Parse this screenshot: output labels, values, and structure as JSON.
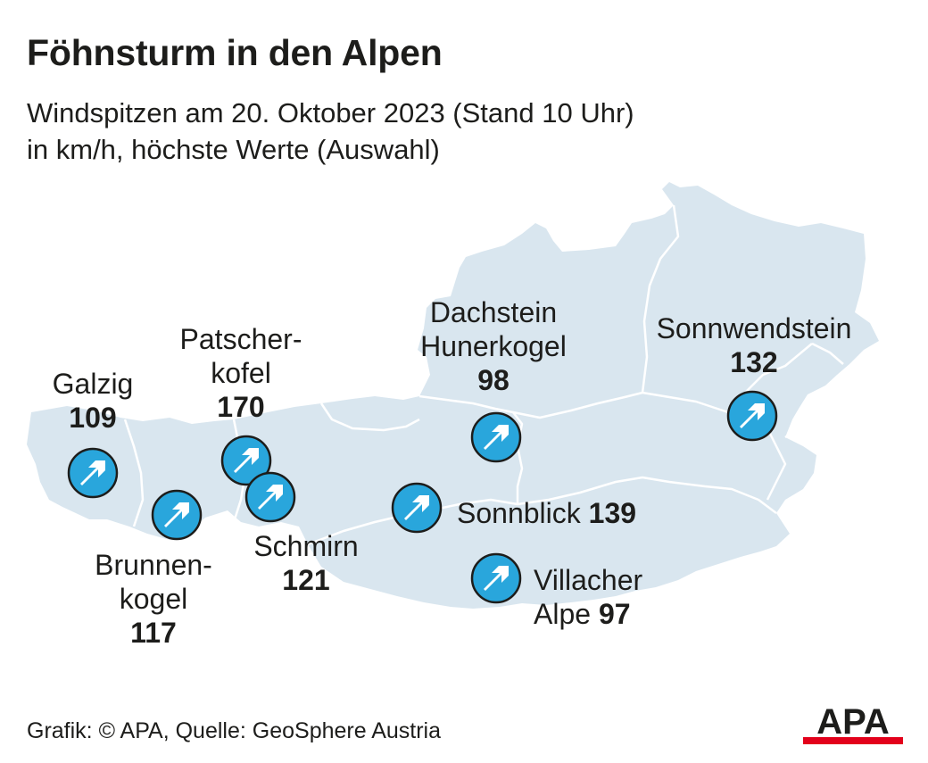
{
  "header": {
    "title": "Föhnsturm in den Alpen",
    "subtitle_line1": "Windspitzen am 20. Oktober 2023 (Stand 10 Uhr)",
    "subtitle_line2": "in km/h, höchste Werte (Auswahl)"
  },
  "colors": {
    "map_fill": "#d9e6ef",
    "border_line": "#ffffff",
    "marker_fill": "#29a6dc",
    "marker_ring": "#1d1d1b",
    "text": "#1d1d1b",
    "logo_red": "#e3001b"
  },
  "stations": [
    {
      "name_line1": "Galzig",
      "name_line2": "",
      "value": "109",
      "icon": "arrow-up-right-icon"
    },
    {
      "name_line1": "Brunnen-",
      "name_line2": "kogel",
      "value": "117",
      "icon": "arrow-up-right-icon"
    },
    {
      "name_line1": "Patscher-",
      "name_line2": "kofel",
      "value": "170",
      "icon": "arrow-up-right-icon"
    },
    {
      "name_line1": "Schmirn",
      "name_line2": "",
      "value": "121",
      "icon": "arrow-up-right-icon"
    },
    {
      "name_line1": "Dachstein",
      "name_line2": "Hunerkogel",
      "value": "98",
      "icon": "arrow-up-right-icon"
    },
    {
      "name_line1": "Sonnblick",
      "name_line2": "",
      "value": "139",
      "icon": "arrow-up-right-icon"
    },
    {
      "name_line1": "Villacher",
      "name_line2": "Alpe",
      "value": "97",
      "icon": "arrow-up-right-icon"
    },
    {
      "name_line1": "Sonnwendstein",
      "name_line2": "",
      "value": "132",
      "icon": "arrow-up-right-icon"
    }
  ],
  "footer": {
    "credit": "Grafik: © APA, Quelle: GeoSphere Austria",
    "logo_text": "APA"
  }
}
